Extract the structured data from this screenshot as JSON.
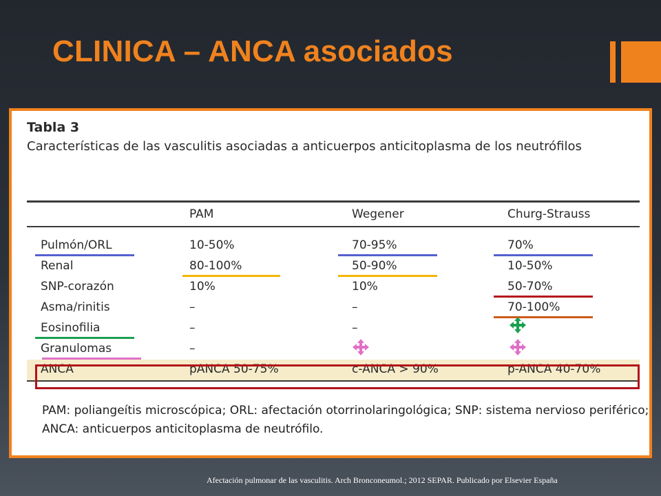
{
  "slide": {
    "title": "CLINICA – ANCA asociados",
    "citation": "Afectación pulmonar de las vasculitis. Arch Bronconeumol.; 2012 SEPAR. Publicado por Elsevier España"
  },
  "table": {
    "label": "Tabla 3",
    "description": "Características de las vasculitis asociadas a anticuerpos anticitoplasma de los neutrófilos",
    "headers": [
      "",
      "PAM",
      "Wegener",
      "Churg-Strauss"
    ],
    "rows": [
      [
        "Pulmón/ORL",
        "10-50%",
        "70-95%",
        "70%"
      ],
      [
        "Renal",
        "80-100%",
        "50-90%",
        "10-50%"
      ],
      [
        "SNP-corazón",
        "10%",
        "10%",
        "50-70%"
      ],
      [
        "Asma/rinitis",
        "–",
        "–",
        "70-100%"
      ],
      [
        "Eosinofilia",
        "–",
        "–",
        ""
      ],
      [
        "Granulomas",
        "–",
        "",
        ""
      ],
      [
        "ANCA",
        "pANCA 50-75%",
        "c-ANCA > 90%",
        "p-ANCA 40-70%"
      ]
    ],
    "footnote": "PAM: poliangeítis microscópica; ORL: afectación otorrinolaringológica; SNP: sistema nervioso periférico; ANCA: anticuerpos anticitoplasma de neutrófilo."
  },
  "annotation_colors": {
    "pulmon_orl": "#5560d0",
    "renal": "#f4b400",
    "snp_corazon": "#b3121a",
    "asma_rinitis": "#cc5a1a",
    "eosinofilia": "#1aa050",
    "granulomas": "#e070c8",
    "anca_box": "#b3121a",
    "accent": "#f0821e"
  },
  "annotation_icons": {
    "eosinofilia_churg_strauss": "four-arrows-move-icon",
    "granulomas_wegener": "four-arrows-move-icon",
    "granulomas_churg_strauss": "four-arrows-move-icon"
  }
}
